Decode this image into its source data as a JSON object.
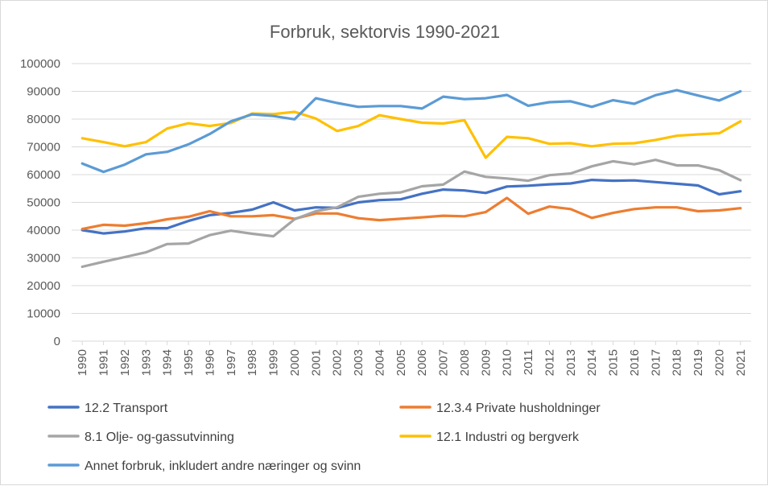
{
  "chart_data": {
    "type": "line",
    "title": "Forbruk, sektorvis 1990-2021",
    "xlabel": "",
    "ylabel": "",
    "ylim": [
      0,
      100000
    ],
    "yticks": [
      0,
      10000,
      20000,
      30000,
      40000,
      50000,
      60000,
      70000,
      80000,
      90000,
      100000
    ],
    "grid": true,
    "legend_position": "bottom",
    "x": [
      "1990",
      "1991",
      "1992",
      "1993",
      "1994",
      "1995",
      "1996",
      "1997",
      "1998",
      "1999",
      "2000",
      "2001",
      "2002",
      "2003",
      "2004",
      "2005",
      "2006",
      "2007",
      "2008",
      "2009",
      "2010",
      "2011",
      "2012",
      "2013",
      "2014",
      "2015",
      "2016",
      "2017",
      "2018",
      "2019",
      "2020",
      "2021"
    ],
    "series": [
      {
        "name": "12.2 Transport",
        "color": "#4472c4",
        "values": [
          40000,
          38800,
          39500,
          40700,
          40700,
          43300,
          45400,
          46200,
          47400,
          50000,
          47100,
          48200,
          48000,
          50000,
          50800,
          51100,
          53100,
          54600,
          54300,
          53400,
          55700,
          56000,
          56500,
          56800,
          58100,
          57800,
          57900,
          57300,
          56700,
          56100,
          52900,
          54000
        ]
      },
      {
        "name": "12.3.4 Private husholdninger",
        "color": "#ed7d31",
        "values": [
          40400,
          41900,
          41600,
          42500,
          43900,
          44800,
          46800,
          45000,
          45000,
          45400,
          44100,
          46000,
          46000,
          44300,
          43600,
          44100,
          44600,
          45200,
          45000,
          46500,
          51600,
          45900,
          48500,
          47600,
          44400,
          46200,
          47600,
          48200,
          48200,
          46800,
          47100,
          47900
        ]
      },
      {
        "name": "8.1 Olje- og-gassutvinning",
        "color": "#a5a5a5",
        "values": [
          26800,
          28600,
          30300,
          32000,
          35000,
          35200,
          38200,
          39800,
          38700,
          37800,
          43900,
          46800,
          48200,
          52000,
          53100,
          53600,
          55800,
          56400,
          61100,
          59200,
          58600,
          57800,
          59800,
          60400,
          63000,
          64800,
          63700,
          65300,
          63300,
          63300,
          61600,
          58000
        ]
      },
      {
        "name": "12.1 Industri og bergverk",
        "color": "#ffc000",
        "values": [
          73100,
          71700,
          70200,
          71700,
          76600,
          78500,
          77500,
          78600,
          82000,
          81800,
          82600,
          80200,
          75700,
          77500,
          81400,
          80000,
          78700,
          78400,
          79600,
          66100,
          73600,
          73100,
          71100,
          71300,
          70200,
          71100,
          71300,
          72500,
          74000,
          74500,
          74900,
          79200
        ]
      },
      {
        "name": "Annet forbruk, inkludert andre næringer og svinn",
        "color": "#5b9bd5",
        "values": [
          64000,
          61000,
          63600,
          67300,
          68200,
          70900,
          74600,
          79200,
          81700,
          81100,
          79900,
          87500,
          85800,
          84400,
          84700,
          84700,
          83800,
          88100,
          87200,
          87500,
          88700,
          84800,
          86100,
          86400,
          84400,
          86800,
          85500,
          88600,
          90400,
          88500,
          86700,
          90000
        ]
      }
    ]
  }
}
